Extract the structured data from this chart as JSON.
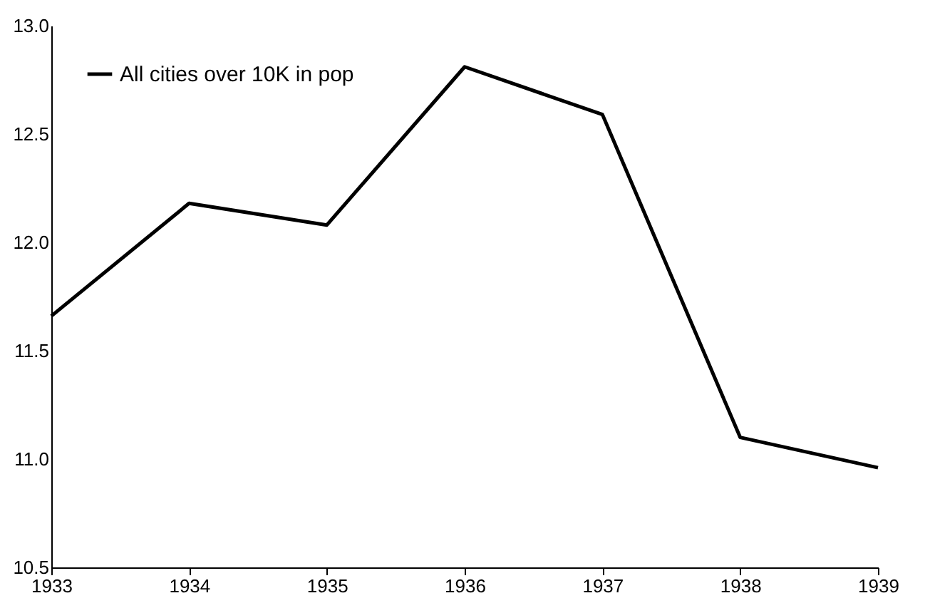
{
  "chart_data": {
    "type": "line",
    "x": [
      1933,
      1934,
      1935,
      1936,
      1937,
      1938,
      1939
    ],
    "series": [
      {
        "name": "All cities over 10K in pop",
        "color": "#000000",
        "values": [
          11.66,
          12.18,
          12.08,
          12.81,
          12.59,
          11.1,
          10.96
        ]
      }
    ],
    "xlim": [
      1933,
      1939
    ],
    "xticks": [
      1933,
      1934,
      1935,
      1936,
      1937,
      1938,
      1939
    ],
    "ylim": [
      10.5,
      13.0
    ],
    "yticks": [
      {
        "value": 10.5,
        "label": "10.5"
      },
      {
        "value": 11,
        "label": "11.0"
      },
      {
        "value": 11.5,
        "label": "11.5"
      },
      {
        "value": 12,
        "label": "12.0"
      },
      {
        "value": 12.5,
        "label": "12.5"
      },
      {
        "value": 13,
        "label": "13.0"
      }
    ],
    "legend": "top left",
    "marker": "none",
    "line_style": "solid",
    "grid": false
  }
}
